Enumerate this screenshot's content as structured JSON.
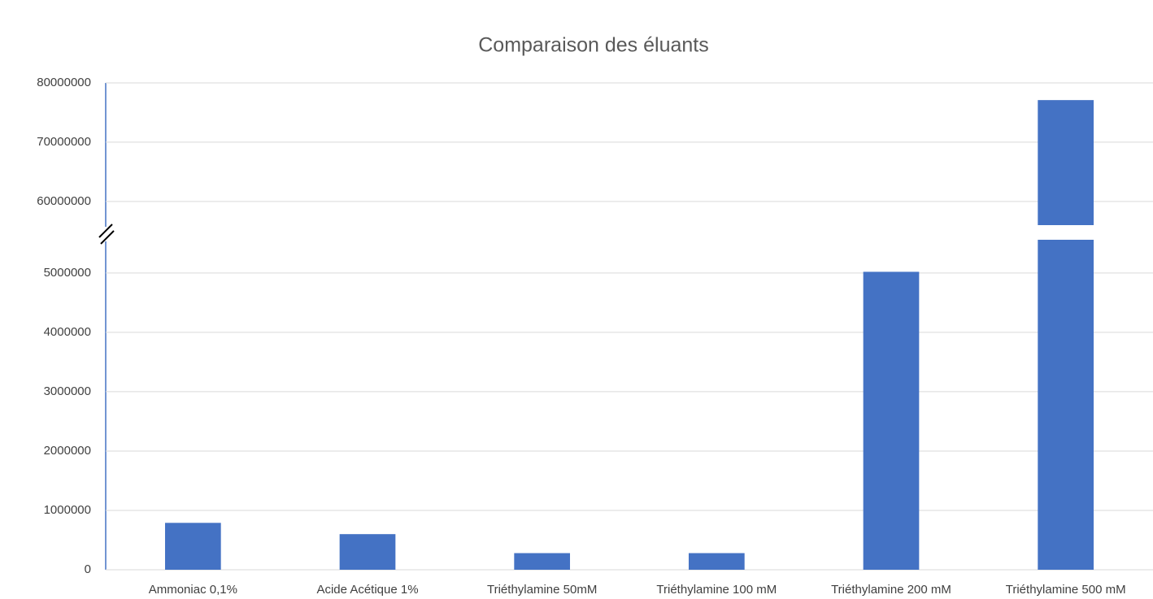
{
  "chart_data": {
    "type": "bar",
    "title": "Comparaison des éluants",
    "categories": [
      "Ammoniac 0,1%",
      "Acide Acétique 1%",
      "Triéthylamine 50mM",
      "Triéthylamine 100 mM",
      "Triéthylamine 200 mM",
      "Triéthylamine 500 mM"
    ],
    "values": [
      790000,
      600000,
      280000,
      280000,
      5020000,
      77100000
    ],
    "color": "#4472c4",
    "grid": true,
    "axis_break": true,
    "segments": [
      {
        "ylim": [
          0,
          5560000
        ],
        "yticks": [
          0,
          1000000,
          2000000,
          3000000,
          4000000,
          5000000
        ]
      },
      {
        "ylim": [
          56000000,
          80000000
        ],
        "yticks": [
          60000000,
          70000000,
          80000000
        ]
      }
    ]
  }
}
